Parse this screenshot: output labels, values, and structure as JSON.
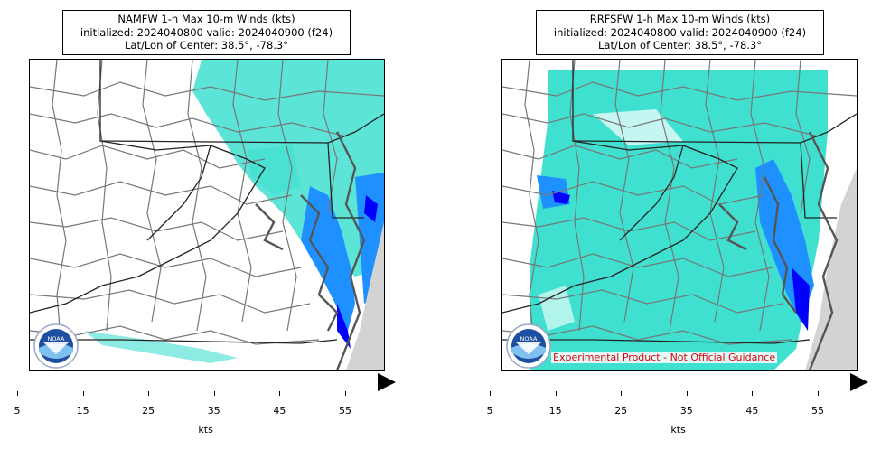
{
  "panels": [
    {
      "title_line1": "NAMFW 1-h Max 10-m Winds (kts)",
      "title_line2": "initialized: 2024040800 valid: 2024040900 (f24)",
      "title_line3": "Lat/Lon of Center: 38.5°, -78.3°"
    },
    {
      "title_line1": "RRFSFW 1-h Max 10-m Winds (kts)",
      "title_line2": "initialized: 2024040800 valid: 2024040900 (f24)",
      "title_line3": "Lat/Lon of Center: 38.5°, -78.3°",
      "disclaimer": "Experimental Product - Not Official Guidance"
    }
  ],
  "logo_text": "NOAA",
  "colorbar": {
    "units": "kts",
    "tick_labels": [
      "5",
      "15",
      "25",
      "35",
      "45",
      "55"
    ],
    "colors": [
      "#40e0d0",
      "#1e90ff",
      "#0000ff",
      "#fff68f",
      "#e0cf55",
      "#cd853f",
      "#a52a2a",
      "#dc143c",
      "#ff0000",
      "#ff00ff",
      "#9400d3"
    ],
    "extend_color": "#000000"
  }
}
